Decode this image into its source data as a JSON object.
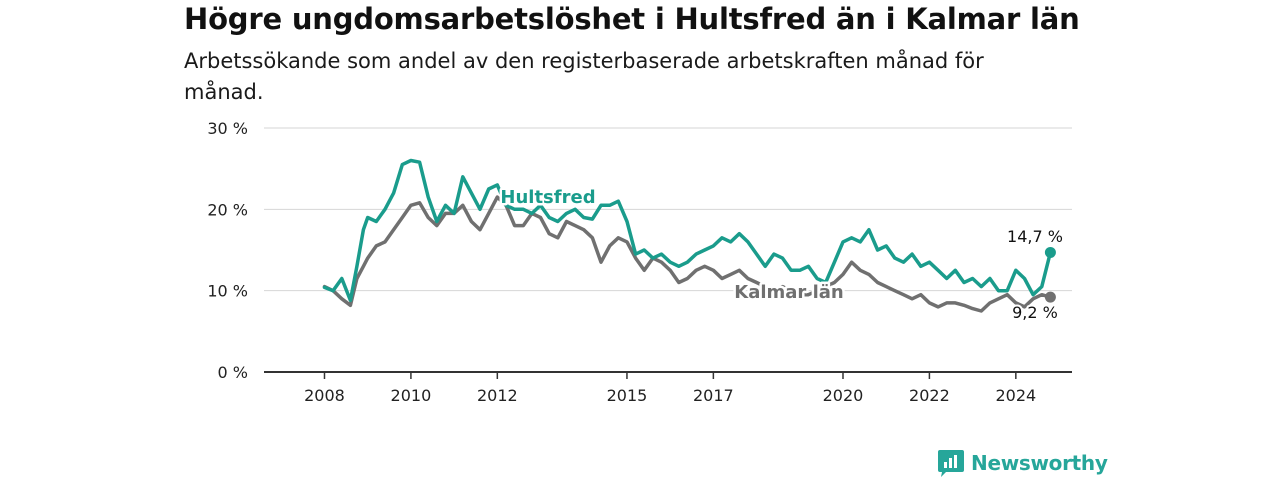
{
  "title": "Högre ungdomsarbetslöshet i Hultsfred än i Kalmar län",
  "subtitle": "Arbetssökande som andel av den registerbaserade arbetskraften månad för månad.",
  "logo_text": "Newsworthy",
  "colors": {
    "hultsfred": "#1a9c8c",
    "kalmar": "#707070",
    "grid": "#d6d6d6",
    "axis": "#333333",
    "brand": "#26a69a"
  },
  "chart_data": {
    "type": "line",
    "x_axis": {
      "ticks": [
        2008,
        2010,
        2012,
        2015,
        2017,
        2020,
        2022,
        2024
      ],
      "range": [
        2006.6,
        2025.3
      ]
    },
    "y_axis": {
      "ticks": [
        0,
        10,
        20,
        30
      ],
      "tick_labels": [
        "0 %",
        "10 %",
        "20 %",
        "30 %"
      ],
      "range": [
        0,
        30
      ]
    },
    "grid": true,
    "series": [
      {
        "name": "Hultsfred",
        "end_label": "14,7 %",
        "x": [
          2008.0,
          2008.2,
          2008.4,
          2008.6,
          2008.75,
          2008.9,
          2009.0,
          2009.2,
          2009.4,
          2009.6,
          2009.8,
          2010.0,
          2010.2,
          2010.4,
          2010.6,
          2010.8,
          2011.0,
          2011.2,
          2011.4,
          2011.6,
          2011.8,
          2012.0,
          2012.2,
          2012.4,
          2012.6,
          2012.8,
          2013.0,
          2013.2,
          2013.4,
          2013.6,
          2013.8,
          2014.0,
          2014.2,
          2014.4,
          2014.6,
          2014.8,
          2015.0,
          2015.2,
          2015.4,
          2015.6,
          2015.8,
          2016.0,
          2016.2,
          2016.4,
          2016.6,
          2016.8,
          2017.0,
          2017.2,
          2017.4,
          2017.6,
          2017.8,
          2018.0,
          2018.2,
          2018.4,
          2018.6,
          2018.8,
          2019.0,
          2019.2,
          2019.4,
          2019.6,
          2019.8,
          2020.0,
          2020.2,
          2020.4,
          2020.6,
          2020.8,
          2021.0,
          2021.2,
          2021.4,
          2021.6,
          2021.8,
          2022.0,
          2022.2,
          2022.4,
          2022.6,
          2022.8,
          2023.0,
          2023.2,
          2023.4,
          2023.6,
          2023.8,
          2024.0,
          2024.2,
          2024.4,
          2024.6,
          2024.8
        ],
        "y": [
          10.4,
          10.0,
          11.5,
          8.8,
          13.0,
          17.5,
          19.0,
          18.5,
          20.0,
          22.0,
          25.5,
          26.0,
          25.8,
          21.5,
          18.5,
          20.5,
          19.5,
          24.0,
          22.0,
          20.0,
          22.5,
          23.0,
          20.5,
          20.0,
          20.0,
          19.5,
          20.5,
          19.0,
          18.5,
          19.5,
          20.0,
          19.0,
          18.8,
          20.5,
          20.5,
          21.0,
          18.5,
          14.5,
          15.0,
          14.0,
          14.5,
          13.5,
          13.0,
          13.5,
          14.5,
          15.0,
          15.5,
          16.5,
          16.0,
          17.0,
          16.0,
          14.5,
          13.0,
          14.5,
          14.0,
          12.5,
          12.5,
          13.0,
          11.5,
          11.0,
          13.5,
          16.0,
          16.5,
          16.0,
          17.5,
          15.0,
          15.5,
          14.0,
          13.5,
          14.5,
          13.0,
          13.5,
          12.5,
          11.5,
          12.5,
          11.0,
          11.5,
          10.5,
          11.5,
          10.0,
          10.0,
          12.5,
          11.5,
          9.5,
          10.5,
          14.7
        ]
      },
      {
        "name": "Kalmar län",
        "end_label": "9,2 %",
        "x": [
          2008.0,
          2008.2,
          2008.4,
          2008.6,
          2008.75,
          2008.9,
          2009.0,
          2009.2,
          2009.4,
          2009.6,
          2009.8,
          2010.0,
          2010.2,
          2010.4,
          2010.6,
          2010.8,
          2011.0,
          2011.2,
          2011.4,
          2011.6,
          2011.8,
          2012.0,
          2012.2,
          2012.4,
          2012.6,
          2012.8,
          2013.0,
          2013.2,
          2013.4,
          2013.6,
          2013.8,
          2014.0,
          2014.2,
          2014.4,
          2014.6,
          2014.8,
          2015.0,
          2015.2,
          2015.4,
          2015.6,
          2015.8,
          2016.0,
          2016.2,
          2016.4,
          2016.6,
          2016.8,
          2017.0,
          2017.2,
          2017.4,
          2017.6,
          2017.8,
          2018.0,
          2018.2,
          2018.4,
          2018.6,
          2018.8,
          2019.0,
          2019.2,
          2019.4,
          2019.6,
          2019.8,
          2020.0,
          2020.2,
          2020.4,
          2020.6,
          2020.8,
          2021.0,
          2021.2,
          2021.4,
          2021.6,
          2021.8,
          2022.0,
          2022.2,
          2022.4,
          2022.6,
          2022.8,
          2023.0,
          2023.2,
          2023.4,
          2023.6,
          2023.8,
          2024.0,
          2024.2,
          2024.4,
          2024.6,
          2024.8
        ],
        "y": [
          10.5,
          10.0,
          9.0,
          8.2,
          11.5,
          13.0,
          14.0,
          15.5,
          16.0,
          17.5,
          19.0,
          20.5,
          20.8,
          19.0,
          18.0,
          19.5,
          19.5,
          20.5,
          18.5,
          17.5,
          19.5,
          21.5,
          20.5,
          18.0,
          18.0,
          19.5,
          19.0,
          17.0,
          16.5,
          18.5,
          18.0,
          17.5,
          16.5,
          13.5,
          15.5,
          16.5,
          16.0,
          14.0,
          12.5,
          14.0,
          13.5,
          12.5,
          11.0,
          11.5,
          12.5,
          13.0,
          12.5,
          11.5,
          12.0,
          12.5,
          11.5,
          11.0,
          10.5,
          10.0,
          10.5,
          10.0,
          9.5,
          9.5,
          10.0,
          10.5,
          11.0,
          12.0,
          13.5,
          12.5,
          12.0,
          11.0,
          10.5,
          10.0,
          9.5,
          9.0,
          9.5,
          8.5,
          8.0,
          8.5,
          8.5,
          8.2,
          7.8,
          7.5,
          8.5,
          9.0,
          9.5,
          8.5,
          8.0,
          9.0,
          9.5,
          9.2
        ]
      }
    ]
  }
}
